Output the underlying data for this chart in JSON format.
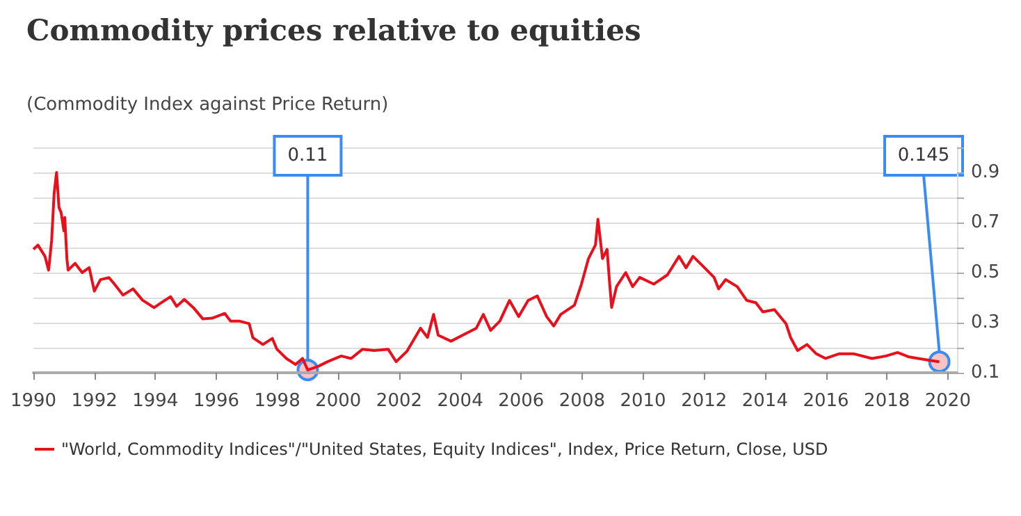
{
  "chart_data": {
    "type": "line",
    "title": "Commodity prices relative to equities",
    "subtitle": "(Commodity Index against Price Return)",
    "x": [
      1990.0,
      1990.15,
      1990.38,
      1990.5,
      1990.6,
      1990.68,
      1990.76,
      1990.84,
      1990.91,
      1991.0,
      1991.03,
      1991.1,
      1991.14,
      1991.37,
      1991.6,
      1991.83,
      1992.0,
      1992.2,
      1992.48,
      1992.66,
      1992.94,
      1993.27,
      1993.58,
      1993.96,
      1994.2,
      1994.5,
      1994.7,
      1994.95,
      1995.25,
      1995.56,
      1995.86,
      1996.28,
      1996.47,
      1996.77,
      1997.08,
      1997.2,
      1997.53,
      1997.84,
      1997.99,
      1998.3,
      1998.6,
      1998.83,
      1999.0,
      1999.35,
      1999.65,
      2000.1,
      2000.42,
      2000.8,
      2001.18,
      2001.64,
      2001.9,
      2002.25,
      2002.7,
      2002.93,
      2003.13,
      2003.28,
      2003.7,
      2004.08,
      2004.53,
      2004.76,
      2005.0,
      2005.3,
      2005.62,
      2005.92,
      2006.23,
      2006.53,
      2006.84,
      2007.07,
      2007.3,
      2007.75,
      2007.98,
      2008.21,
      2008.44,
      2008.52,
      2008.67,
      2008.82,
      2008.9,
      2008.97,
      2009.13,
      2009.43,
      2009.66,
      2009.89,
      2010.35,
      2010.8,
      2011.18,
      2011.41,
      2011.64,
      2012.02,
      2012.33,
      2012.48,
      2012.71,
      2013.09,
      2013.4,
      2013.7,
      2013.93,
      2014.31,
      2014.69,
      2014.84,
      2015.07,
      2015.38,
      2015.68,
      2015.99,
      2016.44,
      2016.9,
      2017.51,
      2017.97,
      2018.35,
      2018.73,
      2019.03,
      2019.49,
      2019.72
    ],
    "series": [
      {
        "name": "\"World, Commodity Indices\"/\"United States, Equity Indices\", Index, Price Return, Close, USD",
        "color": "#e8101c",
        "values": [
          0.593,
          0.61,
          0.565,
          0.51,
          0.63,
          0.815,
          0.9,
          0.76,
          0.74,
          0.667,
          0.72,
          0.555,
          0.51,
          0.537,
          0.5,
          0.52,
          0.426,
          0.472,
          0.48,
          0.454,
          0.41,
          0.435,
          0.39,
          0.36,
          0.38,
          0.404,
          0.365,
          0.393,
          0.36,
          0.315,
          0.318,
          0.337,
          0.306,
          0.306,
          0.296,
          0.24,
          0.213,
          0.237,
          0.194,
          0.157,
          0.133,
          0.157,
          0.111,
          0.126,
          0.144,
          0.167,
          0.157,
          0.194,
          0.189,
          0.194,
          0.144,
          0.185,
          0.278,
          0.241,
          0.333,
          0.25,
          0.226,
          0.25,
          0.278,
          0.333,
          0.269,
          0.306,
          0.389,
          0.324,
          0.389,
          0.407,
          0.324,
          0.287,
          0.333,
          0.37,
          0.454,
          0.556,
          0.611,
          0.713,
          0.556,
          0.593,
          0.463,
          0.361,
          0.444,
          0.5,
          0.444,
          0.481,
          0.454,
          0.491,
          0.565,
          0.519,
          0.565,
          0.519,
          0.481,
          0.435,
          0.472,
          0.444,
          0.389,
          0.38,
          0.343,
          0.352,
          0.296,
          0.241,
          0.189,
          0.213,
          0.176,
          0.157,
          0.176,
          0.176,
          0.157,
          0.167,
          0.181,
          0.163,
          0.157,
          0.148,
          0.144
        ]
      }
    ],
    "annotations": [
      {
        "text": "0.11",
        "x": 1999.0,
        "y": 0.111
      },
      {
        "text": "0.145",
        "x": 2019.72,
        "y": 0.144
      }
    ],
    "xlim": [
      1990,
      2020.3
    ],
    "xticks": [
      1990,
      1992,
      1994,
      1996,
      1998,
      2000,
      2002,
      2004,
      2006,
      2008,
      2010,
      2012,
      2014,
      2016,
      2018,
      2020
    ],
    "ylim": [
      0.1,
      1.0
    ],
    "yticks": [
      0.1,
      {
        "value": 0.2,
        "label": null
      },
      0.3,
      {
        "value": 0.4,
        "label": null
      },
      0.5,
      {
        "value": 0.6,
        "label": null
      },
      0.7,
      {
        "value": 0.8,
        "label": null
      },
      0.9,
      {
        "value": 1.0,
        "label": null
      }
    ],
    "grid": "y",
    "legend": "bottom",
    "marker": "none",
    "line_style": "solid"
  }
}
